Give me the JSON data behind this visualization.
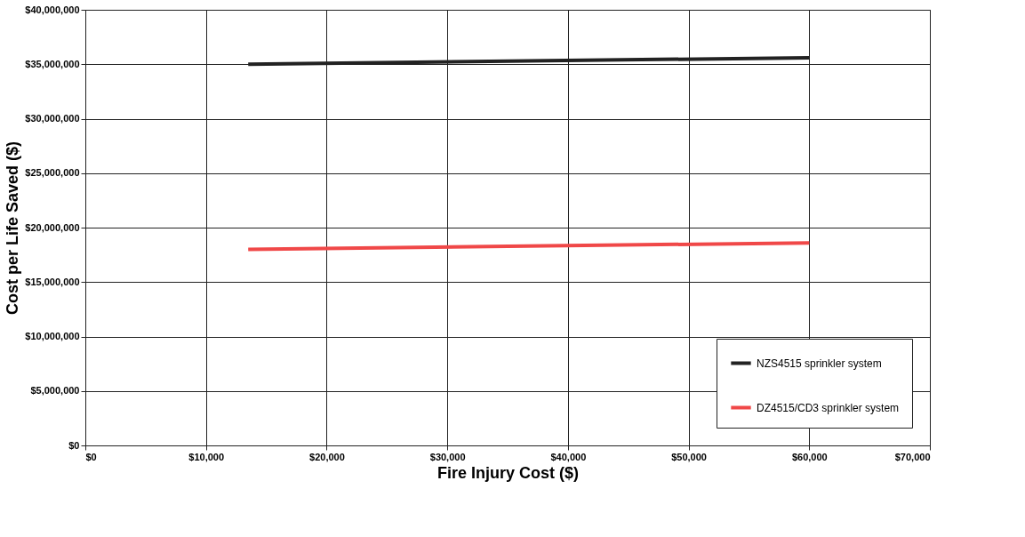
{
  "chart_data": {
    "type": "line",
    "xlabel": "Fire Injury Cost ($)",
    "ylabel": "Cost per Life Saved ($)",
    "x": [
      13500,
      60000
    ],
    "series": [
      {
        "name": "NZS4515 sprinkler system",
        "color": "#222222",
        "values": [
          35000000,
          35600000
        ]
      },
      {
        "name": "DZ4515/CD3 sprinkler system",
        "color": "#f04848",
        "values": [
          18000000,
          18600000
        ]
      }
    ],
    "xlim": [
      0,
      70000
    ],
    "xticks": [
      {
        "value": 0,
        "label": "$0"
      },
      {
        "value": 10000,
        "label": "$10,000"
      },
      {
        "value": 20000,
        "label": "$20,000"
      },
      {
        "value": 30000,
        "label": "$30,000"
      },
      {
        "value": 40000,
        "label": "$40,000"
      },
      {
        "value": 50000,
        "label": "$50,000"
      },
      {
        "value": 60000,
        "label": "$60,000"
      },
      {
        "value": 70000,
        "label": "$70,000"
      }
    ],
    "ylim": [
      0,
      40000000
    ],
    "yticks": [
      {
        "value": 0,
        "label": "$0"
      },
      {
        "value": 5000000,
        "label": "$5,000,000"
      },
      {
        "value": 10000000,
        "label": "$10,000,000"
      },
      {
        "value": 15000000,
        "label": "$15,000,000"
      },
      {
        "value": 20000000,
        "label": "$20,000,000"
      },
      {
        "value": 25000000,
        "label": "$25,000,000"
      },
      {
        "value": 30000000,
        "label": "$30,000,000"
      },
      {
        "value": 35000000,
        "label": "$35,000,000"
      },
      {
        "value": 40000000,
        "label": "$40,000,000"
      }
    ],
    "grid": true,
    "legend": "bottom right",
    "marker": "none",
    "line_style": "solid"
  }
}
